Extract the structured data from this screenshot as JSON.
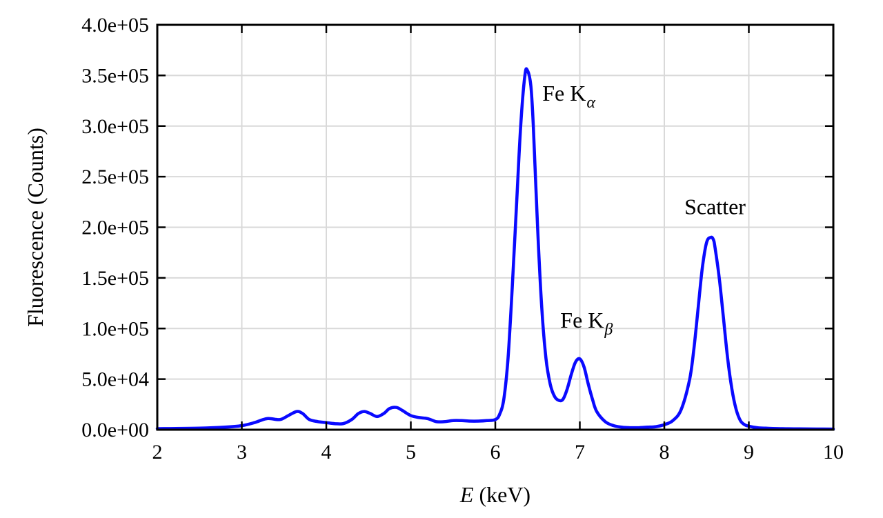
{
  "chart_data": {
    "type": "line",
    "title": "",
    "xlabel_var": "E",
    "xlabel_unit": " (keV)",
    "ylabel": "Fluorescence (Counts)",
    "xlim": [
      2,
      10
    ],
    "ylim": [
      0,
      400000
    ],
    "x_ticks": [
      2,
      3,
      4,
      5,
      6,
      7,
      8,
      9,
      10
    ],
    "x_tick_labels": [
      "2",
      "3",
      "4",
      "5",
      "6",
      "7",
      "8",
      "9",
      "10"
    ],
    "y_ticks": [
      0,
      50000,
      100000,
      150000,
      200000,
      250000,
      300000,
      350000,
      400000
    ],
    "y_tick_labels": [
      "0.0e+00",
      "5.0e+04",
      "1.0e+05",
      "1.5e+05",
      "2.0e+05",
      "2.5e+05",
      "3.0e+05",
      "3.5e+05",
      "4.0e+05"
    ],
    "grid": true,
    "line_color": "#0a0aff",
    "series": [
      {
        "x": [
          2.0,
          2.5,
          2.8,
          3.0,
          3.15,
          3.3,
          3.45,
          3.55,
          3.65,
          3.72,
          3.8,
          3.9,
          4.0,
          4.1,
          4.2,
          4.3,
          4.38,
          4.45,
          4.52,
          4.6,
          4.68,
          4.75,
          4.83,
          4.9,
          5.0,
          5.1,
          5.2,
          5.3,
          5.4,
          5.5,
          5.6,
          5.7,
          5.8,
          5.9,
          6.0,
          6.05,
          6.1,
          6.15,
          6.2,
          6.25,
          6.3,
          6.35,
          6.38,
          6.42,
          6.45,
          6.5,
          6.55,
          6.6,
          6.65,
          6.7,
          6.75,
          6.8,
          6.85,
          6.9,
          6.95,
          7.0,
          7.05,
          7.1,
          7.15,
          7.2,
          7.3,
          7.4,
          7.5,
          7.6,
          7.7,
          7.8,
          7.9,
          8.0,
          8.1,
          8.2,
          8.3,
          8.35,
          8.4,
          8.45,
          8.5,
          8.55,
          8.58,
          8.6,
          8.65,
          8.7,
          8.75,
          8.8,
          8.85,
          8.9,
          8.95,
          9.0,
          9.1,
          9.2,
          9.4,
          9.6,
          9.8,
          10.0
        ],
        "y": [
          1000,
          1500,
          2500,
          4000,
          7000,
          11000,
          10000,
          14000,
          18000,
          16000,
          10000,
          8000,
          7000,
          6000,
          6000,
          10000,
          16000,
          18000,
          16000,
          13000,
          16000,
          21000,
          22000,
          19000,
          14000,
          12000,
          11000,
          8000,
          8000,
          9000,
          9000,
          8500,
          8500,
          9000,
          10000,
          15000,
          30000,
          70000,
          140000,
          220000,
          300000,
          350000,
          355000,
          340000,
          300000,
          200000,
          120000,
          70000,
          45000,
          33000,
          29000,
          30000,
          40000,
          55000,
          67000,
          70000,
          62000,
          45000,
          30000,
          18000,
          8000,
          4000,
          2500,
          2000,
          2000,
          2500,
          3000,
          5000,
          9000,
          20000,
          50000,
          80000,
          120000,
          160000,
          185000,
          190000,
          188000,
          180000,
          150000,
          110000,
          70000,
          40000,
          20000,
          9000,
          5000,
          3500,
          2000,
          1500,
          1000,
          800,
          700,
          600
        ]
      }
    ],
    "annotations": [
      {
        "main": "Fe K",
        "sub": "α",
        "x": 6.87,
        "y": 325000
      },
      {
        "main": "Fe K",
        "sub": "β",
        "x": 7.08,
        "y": 101000
      },
      {
        "main": "Scatter",
        "sub": "",
        "x": 8.6,
        "y": 213000
      }
    ]
  }
}
